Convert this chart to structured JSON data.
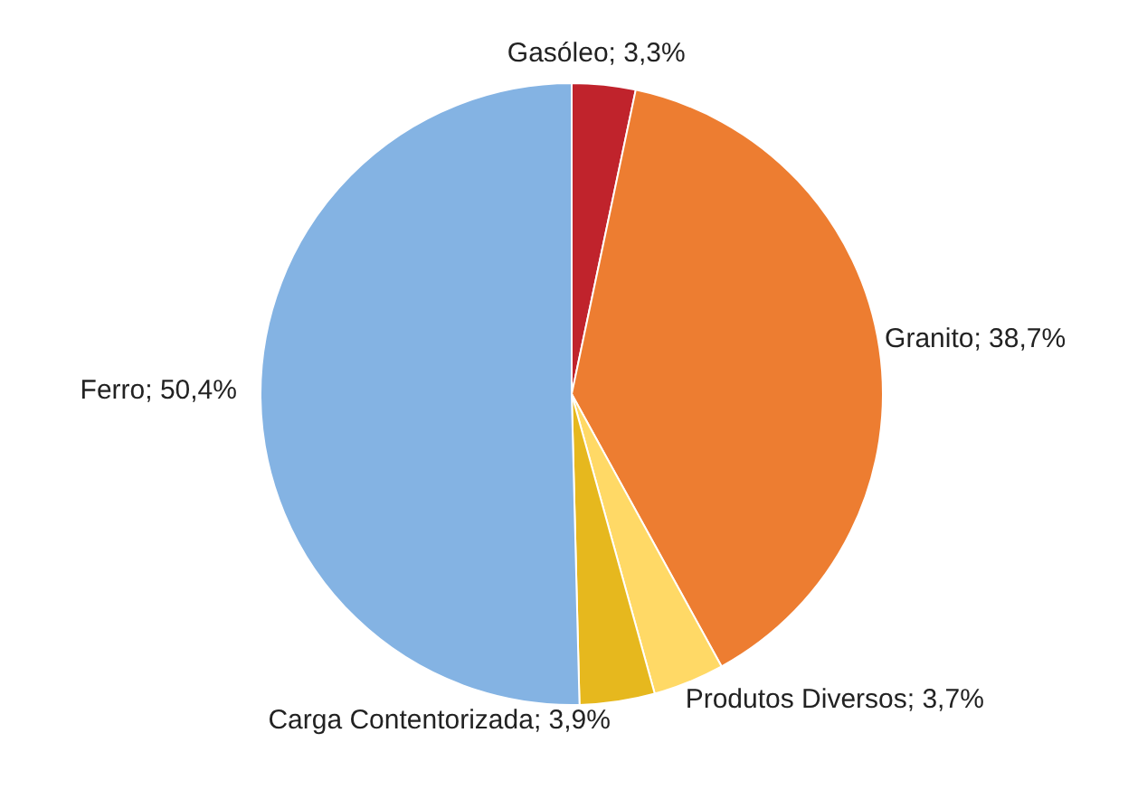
{
  "chart_data": {
    "type": "pie",
    "categories": [
      "Gasóleo",
      "Granito",
      "Produtos Diversos",
      "Carga Contentorizada",
      "Ferro"
    ],
    "values": [
      3.3,
      38.7,
      3.7,
      3.9,
      50.4
    ],
    "colors": [
      "#c0232c",
      "#ed7d31",
      "#ffd966",
      "#e6b81e",
      "#84b3e3"
    ],
    "value_labels": [
      "3,3%",
      "38,7%",
      "3,7%",
      "3,9%",
      "50,4%"
    ],
    "legend": false
  }
}
